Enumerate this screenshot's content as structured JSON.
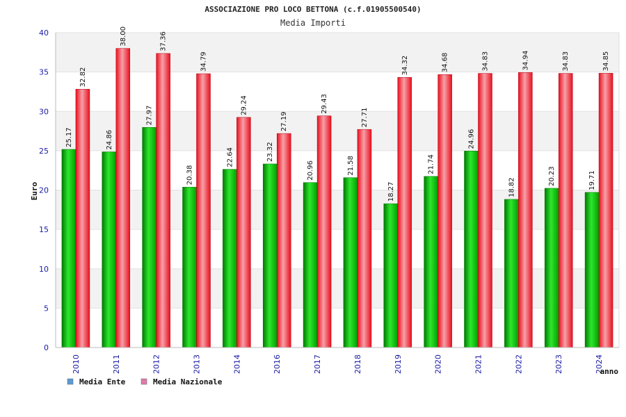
{
  "chart_data": {
    "type": "bar",
    "title": "ASSOCIAZIONE PRO LOCO BETTONA (c.f.01905500540)",
    "subtitle": "Media Importi",
    "xlabel": "anno",
    "ylabel": "Euro",
    "ylim": [
      0,
      40
    ],
    "yticks": [
      0,
      5,
      10,
      15,
      20,
      25,
      30,
      35,
      40
    ],
    "grid": true,
    "legend_position": "bottom-left",
    "categories": [
      "2010",
      "2011",
      "2012",
      "2013",
      "2014",
      "2016",
      "2017",
      "2018",
      "2019",
      "2020",
      "2021",
      "2022",
      "2023",
      "2024"
    ],
    "series": [
      {
        "name": "Media Ente",
        "color": "#00b400",
        "legend_color": "#5b9bd5",
        "values": [
          25.17,
          24.86,
          27.97,
          20.38,
          22.64,
          23.32,
          20.96,
          21.58,
          18.27,
          21.74,
          24.96,
          18.82,
          20.23,
          19.71
        ],
        "labels": [
          "25.17",
          "24.86",
          "27.97",
          "20.38",
          "22.64",
          "23.32",
          "20.96",
          "21.58",
          "18.27",
          "21.74",
          "24.96",
          "18.82",
          "20.23",
          "19.71"
        ]
      },
      {
        "name": "Media Nazionale",
        "color": "#e8101e",
        "legend_color": "#e07aa8",
        "values": [
          32.82,
          38.0,
          37.36,
          34.79,
          29.24,
          27.19,
          29.43,
          27.71,
          34.32,
          34.68,
          34.83,
          34.94,
          34.83,
          34.85
        ],
        "labels": [
          "32.82",
          "38.00",
          "37.36",
          "34.79",
          "29.24",
          "27.19",
          "29.43",
          "27.71",
          "34.32",
          "34.68",
          "34.83",
          "34.94",
          "34.83",
          "34.85"
        ]
      }
    ]
  }
}
